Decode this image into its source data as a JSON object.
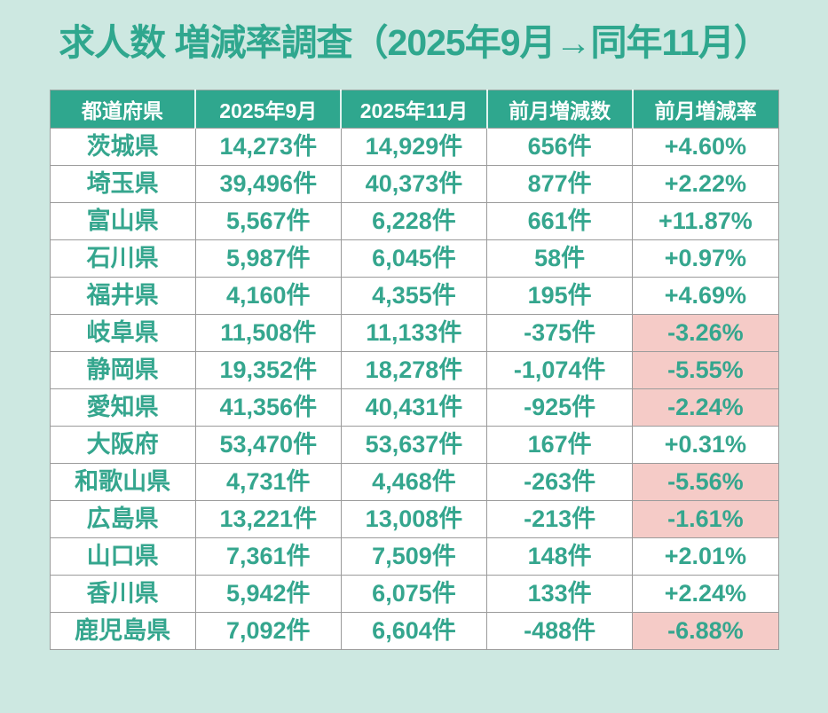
{
  "page": {
    "title": "求人数 増減率調査（2025年9月→同年11月）"
  },
  "colors": {
    "accent_teal": "#2fa78e",
    "background_mint": "#cde8e1",
    "negative_pink": "#f5cbc7",
    "cell_background": "#ffffff",
    "header_text": "#ffffff",
    "cell_border": "#9b9b9b"
  },
  "table": {
    "headers": [
      "都道府県",
      "2025年9月",
      "2025年11月",
      "前月増減数",
      "前月増減率"
    ],
    "rows": [
      {
        "prefecture": "茨城県",
        "sep2025": "14,273件",
        "nov2025": "14,929件",
        "change": "656件",
        "rate": "+4.60%",
        "negative": false
      },
      {
        "prefecture": "埼玉県",
        "sep2025": "39,496件",
        "nov2025": "40,373件",
        "change": "877件",
        "rate": "+2.22%",
        "negative": false
      },
      {
        "prefecture": "富山県",
        "sep2025": "5,567件",
        "nov2025": "6,228件",
        "change": "661件",
        "rate": "+11.87%",
        "negative": false
      },
      {
        "prefecture": "石川県",
        "sep2025": "5,987件",
        "nov2025": "6,045件",
        "change": "58件",
        "rate": "+0.97%",
        "negative": false
      },
      {
        "prefecture": "福井県",
        "sep2025": "4,160件",
        "nov2025": "4,355件",
        "change": "195件",
        "rate": "+4.69%",
        "negative": false
      },
      {
        "prefecture": "岐阜県",
        "sep2025": "11,508件",
        "nov2025": "11,133件",
        "change": "-375件",
        "rate": "-3.26%",
        "negative": true
      },
      {
        "prefecture": "静岡県",
        "sep2025": "19,352件",
        "nov2025": "18,278件",
        "change": "-1,074件",
        "rate": "-5.55%",
        "negative": true
      },
      {
        "prefecture": "愛知県",
        "sep2025": "41,356件",
        "nov2025": "40,431件",
        "change": "-925件",
        "rate": "-2.24%",
        "negative": true
      },
      {
        "prefecture": "大阪府",
        "sep2025": "53,470件",
        "nov2025": "53,637件",
        "change": "167件",
        "rate": "+0.31%",
        "negative": false
      },
      {
        "prefecture": "和歌山県",
        "sep2025": "4,731件",
        "nov2025": "4,468件",
        "change": "-263件",
        "rate": "-5.56%",
        "negative": true
      },
      {
        "prefecture": "広島県",
        "sep2025": "13,221件",
        "nov2025": "13,008件",
        "change": "-213件",
        "rate": "-1.61%",
        "negative": true
      },
      {
        "prefecture": "山口県",
        "sep2025": "7,361件",
        "nov2025": "7,509件",
        "change": "148件",
        "rate": "+2.01%",
        "negative": false
      },
      {
        "prefecture": "香川県",
        "sep2025": "5,942件",
        "nov2025": "6,075件",
        "change": "133件",
        "rate": "+2.24%",
        "negative": false
      },
      {
        "prefecture": "鹿児島県",
        "sep2025": "7,092件",
        "nov2025": "6,604件",
        "change": "-488件",
        "rate": "-6.88%",
        "negative": true
      }
    ]
  },
  "chart_data": {
    "type": "table",
    "title": "求人数 増減率調査（2025年9月→同年11月）",
    "columns": [
      "都道府県",
      "2025年9月",
      "2025年11月",
      "前月増減数",
      "前月増減率"
    ],
    "rows": [
      [
        "茨城県",
        14273,
        14929,
        656,
        4.6
      ],
      [
        "埼玉県",
        39496,
        40373,
        877,
        2.22
      ],
      [
        "富山県",
        5567,
        6228,
        661,
        11.87
      ],
      [
        "石川県",
        5987,
        6045,
        58,
        0.97
      ],
      [
        "福井県",
        4160,
        4355,
        195,
        4.69
      ],
      [
        "岐阜県",
        11508,
        11133,
        -375,
        -3.26
      ],
      [
        "静岡県",
        19352,
        18278,
        -1074,
        -5.55
      ],
      [
        "愛知県",
        41356,
        40431,
        -925,
        -2.24
      ],
      [
        "大阪府",
        53470,
        53637,
        167,
        0.31
      ],
      [
        "和歌山県",
        4731,
        4468,
        -263,
        -5.56
      ],
      [
        "広島県",
        13221,
        13008,
        -213,
        -1.61
      ],
      [
        "山口県",
        7361,
        7509,
        148,
        2.01
      ],
      [
        "香川県",
        5942,
        6075,
        133,
        2.24
      ],
      [
        "鹿児島県",
        7092,
        6604,
        -488,
        -6.88
      ]
    ],
    "notes": "前月増減率 cells with negative values have pink background highlight; units are 件 (job postings count)."
  }
}
